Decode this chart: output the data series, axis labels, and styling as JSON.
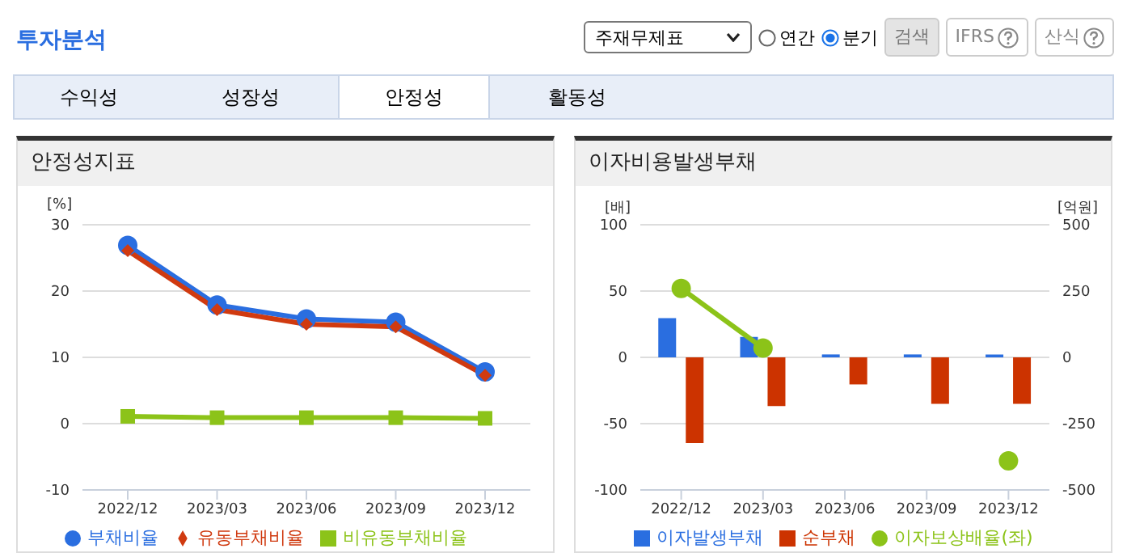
{
  "chart_data": [
    {
      "type": "line",
      "title": "안정성지표",
      "ylabel": "[%]",
      "annotations": [
        "투자분석",
        "주재무제표",
        "연간",
        "분기",
        "검색",
        "IFRS",
        "산식",
        "수익성",
        "성장성",
        "안정성",
        "활동성"
      ],
      "categories": [
        "2022/12",
        "2023/03",
        "2023/06",
        "2023/09",
        "2023/12"
      ],
      "series": [
        {
          "name": "부채비율",
          "color": "#2a6ee0",
          "marker": "circle",
          "values": [
            26.9,
            17.9,
            15.8,
            15.3,
            7.8
          ]
        },
        {
          "name": "유동부채비율",
          "color": "#d03a10",
          "marker": "diamond",
          "values": [
            26.1,
            17.2,
            15.0,
            14.6,
            7.3
          ]
        },
        {
          "name": "비유동부채비율",
          "color": "#8cc319",
          "marker": "square",
          "values": [
            1.1,
            0.9,
            0.9,
            0.9,
            0.8
          ]
        }
      ],
      "ylim": [
        -10,
        30
      ],
      "yticks": [
        -10,
        0,
        10,
        20,
        30
      ],
      "grid": "y",
      "legend": "bottom"
    },
    {
      "type": "bar",
      "title": "이자비용발생부채",
      "ylabel": "[배]",
      "y2label": "[억원]",
      "categories": [
        "2022/12",
        "2023/03",
        "2023/06",
        "2023/09",
        "2023/12"
      ],
      "series": [
        {
          "name": "이자발생부채",
          "color": "#2a6ee0",
          "axis": "y2",
          "values": [
            148,
            77,
            11,
            11,
            11
          ]
        },
        {
          "name": "순부채",
          "color": "#cc3300",
          "axis": "y2",
          "values": [
            -323,
            -184,
            -102,
            -175,
            -175
          ]
        },
        {
          "name": "이자보상배율(좌)",
          "type": "line",
          "color": "#8cc319",
          "marker": "circle",
          "values": [
            52,
            7,
            null,
            null,
            -78
          ]
        }
      ],
      "ylim": [
        -100,
        100
      ],
      "yticks": [
        -100,
        -50,
        0,
        50,
        100
      ],
      "y2lim": [
        -500,
        500
      ],
      "y2ticks": [
        -500,
        -250,
        0,
        250,
        500
      ],
      "grid": "y",
      "legend": "bottom"
    }
  ]
}
